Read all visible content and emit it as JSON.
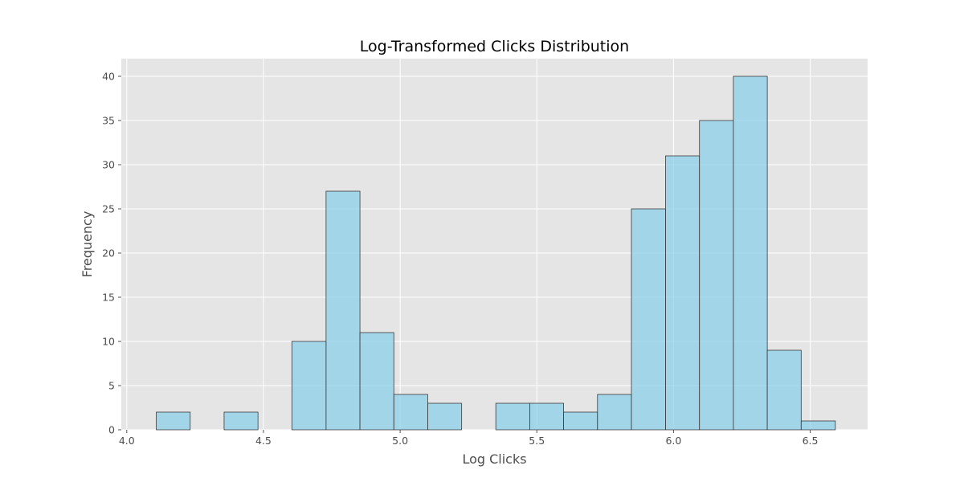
{
  "chart_data": {
    "type": "bar",
    "subtype": "histogram",
    "title": "Log-Transformed Clicks Distribution",
    "xlabel": "Log Clicks",
    "ylabel": "Frequency",
    "xlim": [
      3.98,
      6.71
    ],
    "ylim": [
      0,
      42
    ],
    "xticks": [
      4.0,
      4.5,
      5.0,
      5.5,
      6.0,
      6.5
    ],
    "xtick_labels": [
      "4.0",
      "4.5",
      "5.0",
      "5.5",
      "6.0",
      "6.5"
    ],
    "yticks": [
      0,
      5,
      10,
      15,
      20,
      25,
      30,
      35,
      40
    ],
    "ytick_labels": [
      "0",
      "5",
      "10",
      "15",
      "20",
      "25",
      "30",
      "35",
      "40"
    ],
    "bins": [
      {
        "x0": 4.108,
        "x1": 4.232,
        "count": 2
      },
      {
        "x0": 4.232,
        "x1": 4.356,
        "count": 0
      },
      {
        "x0": 4.356,
        "x1": 4.48,
        "count": 2
      },
      {
        "x0": 4.48,
        "x1": 4.604,
        "count": 0
      },
      {
        "x0": 4.604,
        "x1": 4.729,
        "count": 10
      },
      {
        "x0": 4.729,
        "x1": 4.853,
        "count": 27
      },
      {
        "x0": 4.853,
        "x1": 4.977,
        "count": 11
      },
      {
        "x0": 4.977,
        "x1": 5.101,
        "count": 4
      },
      {
        "x0": 5.101,
        "x1": 5.225,
        "count": 3
      },
      {
        "x0": 5.225,
        "x1": 5.35,
        "count": 0
      },
      {
        "x0": 5.35,
        "x1": 5.474,
        "count": 3
      },
      {
        "x0": 5.474,
        "x1": 5.598,
        "count": 3
      },
      {
        "x0": 5.598,
        "x1": 5.722,
        "count": 2
      },
      {
        "x0": 5.722,
        "x1": 5.846,
        "count": 4
      },
      {
        "x0": 5.846,
        "x1": 5.971,
        "count": 25
      },
      {
        "x0": 5.971,
        "x1": 6.095,
        "count": 31
      },
      {
        "x0": 6.095,
        "x1": 6.219,
        "count": 35
      },
      {
        "x0": 6.219,
        "x1": 6.343,
        "count": 40
      },
      {
        "x0": 6.343,
        "x1": 6.467,
        "count": 9
      },
      {
        "x0": 6.467,
        "x1": 6.592,
        "count": 1
      }
    ],
    "grid": true,
    "colors": {
      "plot_background": "#e5e5e5",
      "bar_fill": "#87ceeb",
      "bar_opacity": 0.7,
      "bar_edge": "#3a3a3a",
      "grid": "#ffffff"
    }
  }
}
